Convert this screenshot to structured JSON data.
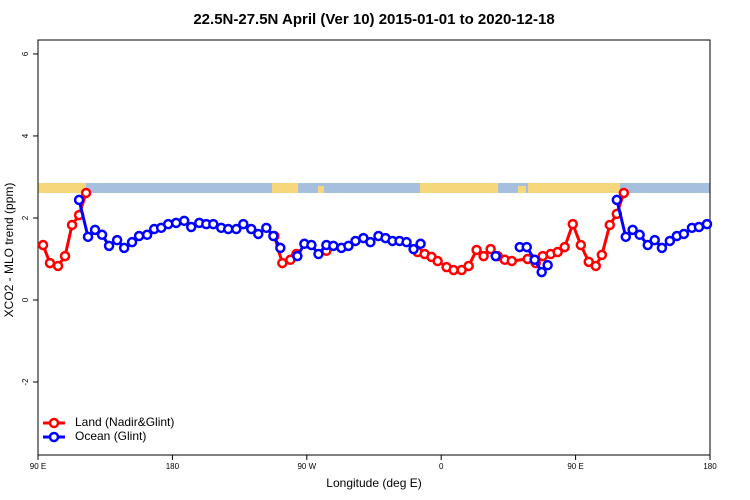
{
  "chart_data": {
    "type": "line",
    "title": "22.5N-27.5N April (Ver 10)   2015-01-01 to 2020-12-18",
    "xlabel": "Longitude (deg E)",
    "ylabel": "XCO2 - MLO trend (ppm)",
    "xlim": [
      90,
      540
    ],
    "xticks": [
      {
        "value": 90,
        "label": "90 E"
      },
      180,
      {
        "value": 270,
        "label": "90 W"
      },
      {
        "value": 360,
        "label": "0"
      },
      {
        "value": 450,
        "label": "90 E"
      },
      {
        "value": 540,
        "label": "180"
      }
    ],
    "ylim": [
      -3.78,
      6.34
    ],
    "yticks": [
      -2,
      0,
      2,
      4,
      6
    ],
    "legend": "bottom-left",
    "series": [
      {
        "name": "Land (Nadir&Glint)",
        "color": "#ff0000",
        "x": [
          93.4,
          98.0,
          103.4,
          108.1,
          112.8,
          117.5,
          122.2,
          null,
          248.3,
          253.6,
          259.0,
          263.0,
          null,
          283.1,
          null,
          344.2,
          348.9,
          353.5,
          357.6,
          363.6,
          368.3,
          373.7,
          378.4,
          383.7,
          388.4,
          393.1,
          397.8,
          402.6,
          407.3,
          417.9,
          423.3,
          428.0,
          433.3,
          438.0,
          442.7,
          448.1,
          453.5,
          458.8,
          463.5,
          467.6,
          472.9,
          477.6,
          482.3
        ],
        "values": [
          1.34,
          0.9,
          0.83,
          1.07,
          1.83,
          2.07,
          2.61,
          null,
          1.56,
          0.9,
          0.98,
          1.12,
          null,
          1.2,
          null,
          1.17,
          1.12,
          1.05,
          0.95,
          0.8,
          0.73,
          0.73,
          0.83,
          1.22,
          1.07,
          1.24,
          1.07,
          0.98,
          0.95,
          1.0,
          0.9,
          1.07,
          1.12,
          1.17,
          1.29,
          1.85,
          1.34,
          0.93,
          0.83,
          1.1,
          1.83,
          2.1,
          2.61
        ]
      },
      {
        "name": "Ocean (Glint)",
        "color": "#0000ff",
        "x": [
          117.5,
          123.5,
          128.2,
          132.9,
          137.6,
          143.0,
          147.7,
          153.0,
          157.7,
          163.1,
          167.8,
          172.5,
          177.2,
          182.5,
          187.9,
          192.6,
          198.0,
          202.7,
          207.4,
          212.7,
          217.4,
          222.8,
          227.5,
          232.8,
          237.5,
          242.9,
          247.6,
          252.3,
          null,
          263.7,
          268.4,
          273.1,
          277.8,
          283.1,
          287.8,
          293.2,
          297.9,
          302.6,
          307.9,
          312.6,
          318.0,
          322.7,
          327.4,
          332.1,
          336.8,
          341.5,
          346.2,
          null,
          396.5,
          null,
          412.6,
          417.3,
          422.6,
          427.3,
          431.3,
          null,
          477.6,
          483.6,
          488.2,
          492.9,
          498.3,
          503.0,
          507.8,
          513.1,
          517.8,
          522.5,
          527.9,
          532.6,
          538.0
        ],
        "values": [
          2.44,
          1.54,
          1.71,
          1.59,
          1.32,
          1.46,
          1.27,
          1.41,
          1.56,
          1.59,
          1.73,
          1.76,
          1.85,
          1.88,
          1.93,
          1.78,
          1.88,
          1.85,
          1.85,
          1.76,
          1.73,
          1.73,
          1.85,
          1.73,
          1.61,
          1.76,
          1.56,
          1.27,
          null,
          1.07,
          1.37,
          1.34,
          1.12,
          1.34,
          1.32,
          1.27,
          1.32,
          1.44,
          1.51,
          1.41,
          1.56,
          1.51,
          1.44,
          1.44,
          1.41,
          1.24,
          1.37,
          null,
          1.07,
          null,
          1.29,
          1.29,
          0.98,
          0.68,
          0.85,
          null,
          2.44,
          1.54,
          1.71,
          1.59,
          1.34,
          1.46,
          1.27,
          1.44,
          1.56,
          1.61,
          1.76,
          1.78,
          1.85
        ]
      }
    ]
  }
}
